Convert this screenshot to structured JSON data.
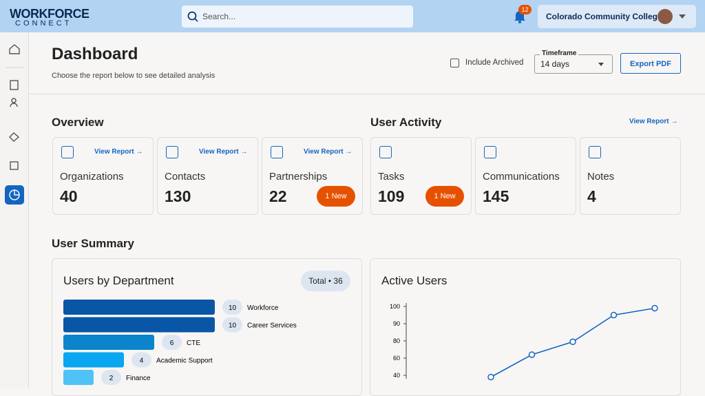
{
  "brand": {
    "line1": "WORKFORCE",
    "line2": "CONNECT"
  },
  "search_placeholder": "Search...",
  "notifications": 12,
  "org": "Colorado Community College",
  "page": {
    "title": "Dashboard",
    "subtitle": "Choose the report below to see detailed analysis"
  },
  "controls": {
    "include_archived": "Include Archived",
    "timeframe_label": "Timeframe",
    "timeframe": "14 days",
    "export": "Export PDF"
  },
  "overview": {
    "title": "Overview",
    "cards": [
      {
        "label": "Organizations",
        "value": 40,
        "link": "View Report"
      },
      {
        "label": "Contacts",
        "value": 130,
        "link": "View Report"
      },
      {
        "label": "Partnerships",
        "value": 22,
        "link": "View Report",
        "badge": "1 New"
      }
    ]
  },
  "user_activity": {
    "title": "User Activity",
    "link": "View Report",
    "cards": [
      {
        "label": "Tasks",
        "value": 109,
        "badge": "1 New"
      },
      {
        "label": "Communications",
        "value": 145
      },
      {
        "label": "Notes",
        "value": 4
      }
    ]
  },
  "user_summary": {
    "title": "User Summary"
  },
  "users_by_department": {
    "type": "bar",
    "title": "Users by Department",
    "total_label": "Total • 36",
    "categories": [
      "Workforce",
      "Career Services",
      "CTE",
      "Academic Support",
      "Finance"
    ],
    "values": [
      10,
      10,
      6,
      4,
      2
    ],
    "colors": [
      "#0a56a6",
      "#0a56a6",
      "#0b84cc",
      "#0aa6ef",
      "#4fc3f7"
    ],
    "xlim": [
      0,
      10
    ]
  },
  "active_users": {
    "type": "line",
    "title": "Active Users",
    "values": [
      38,
      64,
      79,
      95,
      99
    ],
    "ylim": [
      36,
      100
    ],
    "yticks": [
      100,
      90,
      80,
      60,
      40
    ],
    "color": "#1565c0"
  }
}
